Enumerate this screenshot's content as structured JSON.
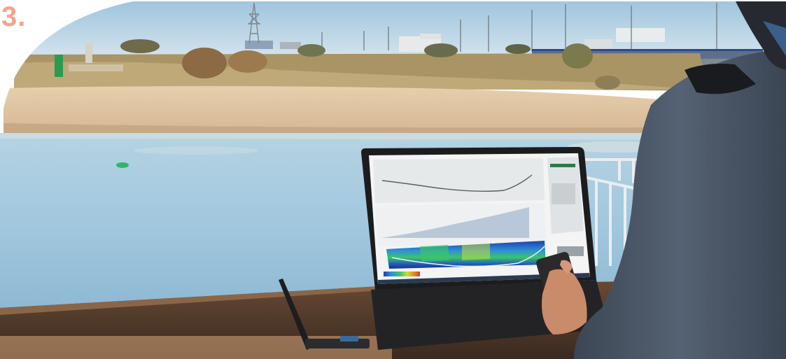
{
  "figure": {
    "number_label": "3."
  },
  "colors": {
    "sky": "#bcd6e6",
    "sand": "#dcc5a4",
    "water": "#a9cce0",
    "number_label": "#f2a48c",
    "laptop_body": "#1c1c1e"
  },
  "screen": {
    "colorbar_stops": [
      "#1f3fb0",
      "#2f8fd6",
      "#3bc46b",
      "#c9dd3a",
      "#e2822a",
      "#d43b2b"
    ]
  }
}
